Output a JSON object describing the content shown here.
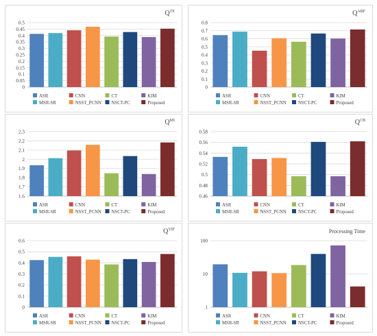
{
  "chart_data": [
    {
      "type": "bar",
      "title": "Q",
      "title_sup": "TE",
      "categories": [
        "ASR",
        "MSR-SR",
        "CNN",
        "NSST_PCNN",
        "CT",
        "NSCT-PC",
        "KIM",
        "Proposed"
      ],
      "series": [
        {
          "values": [
            0.413,
            0.419,
            0.441,
            0.468,
            0.392,
            0.427,
            0.388,
            0.453
          ]
        }
      ],
      "ylim": [
        0,
        0.5
      ],
      "yticks": [
        "0",
        "0.05",
        "0.1",
        "0.15",
        "0.2",
        "0.25",
        "0.3",
        "0.35",
        "0.4",
        "0.45",
        "0.5"
      ],
      "scale": "linear",
      "grid": true,
      "legend_position": "bottom"
    },
    {
      "type": "bar",
      "title": "Q",
      "title_sup": "ABF",
      "categories": [
        "ASR",
        "MSR-SR",
        "CNN",
        "NSST_PCNN",
        "CT",
        "NSCT-PC",
        "KIM",
        "Proposed"
      ],
      "series": [
        {
          "values": [
            0.645,
            0.688,
            0.452,
            0.607,
            0.563,
            0.665,
            0.603,
            0.715
          ]
        }
      ],
      "ylim": [
        0,
        0.8
      ],
      "yticks": [
        "0",
        "0.1",
        "0.2",
        "0.3",
        "0.4",
        "0.5",
        "0.6",
        "0.7",
        "0.8"
      ],
      "scale": "linear",
      "grid": true,
      "legend_position": "bottom"
    },
    {
      "type": "bar",
      "title": "Q",
      "title_sup": "MI",
      "categories": [
        "ASR",
        "MSR-SR",
        "CNN",
        "NSST_PCNN",
        "CT",
        "NSCT-PC",
        "KIM",
        "Proposed"
      ],
      "series": [
        {
          "values": [
            1.935,
            2.012,
            2.096,
            2.157,
            1.848,
            2.035,
            1.84,
            2.183
          ]
        }
      ],
      "ylim": [
        1.6,
        2.3
      ],
      "yticks": [
        "1.6",
        "1.7",
        "1.8",
        "1.9",
        "2",
        "2.1",
        "2.2",
        "2.3"
      ],
      "scale": "linear",
      "grid": true,
      "legend_position": "bottom"
    },
    {
      "type": "bar",
      "title": "Q",
      "title_sup": "CB",
      "categories": [
        "ASR",
        "MSR-SR",
        "CNN",
        "NSST_PCNN",
        "CT",
        "NSCT-PC",
        "KIM",
        "Proposed"
      ],
      "series": [
        {
          "values": [
            0.533,
            0.552,
            0.529,
            0.531,
            0.497,
            0.561,
            0.497,
            0.562
          ]
        }
      ],
      "ylim": [
        0.46,
        0.58
      ],
      "yticks": [
        "0.46",
        "0.48",
        "0.5",
        "0.52",
        "0.54",
        "0.56",
        "0.58"
      ],
      "scale": "linear",
      "grid": true,
      "legend_position": "bottom"
    },
    {
      "type": "bar",
      "title": "Q",
      "title_sup": "VIF",
      "categories": [
        "ASR",
        "MSR-SR",
        "CNN",
        "NSST_PCNN",
        "CT",
        "NSCT-PC",
        "KIM",
        "Proposed"
      ],
      "series": [
        {
          "values": [
            0.425,
            0.454,
            0.459,
            0.429,
            0.386,
            0.434,
            0.408,
            0.48
          ]
        }
      ],
      "ylim": [
        0,
        0.6
      ],
      "yticks": [
        "0",
        "0.1",
        "0.2",
        "0.3",
        "0.4",
        "0.5",
        "0.6"
      ],
      "scale": "linear",
      "grid": true,
      "legend_position": "bottom"
    },
    {
      "type": "bar",
      "title": "Processing Time",
      "title_sup": "",
      "categories": [
        "ASR",
        "MSR-SR",
        "CNN",
        "NSST_PCNN",
        "CT",
        "NSCT-PC",
        "KIM",
        "Proposed"
      ],
      "series": [
        {
          "values": [
            19.5,
            10.8,
            12.0,
            10.6,
            18.5,
            40.0,
            72.0,
            4.2
          ]
        }
      ],
      "ylim": [
        1,
        100
      ],
      "yticks": [
        "1",
        "10",
        "100"
      ],
      "scale": "log",
      "grid": true,
      "legend_position": "bottom"
    }
  ],
  "colors": {
    "ASR": "#4f81bd",
    "MSR-SR": "#4bacc6",
    "CNN": "#c0504d",
    "NSST_PCNN": "#f79646",
    "CT": "#9bbb59",
    "NSCT-PC": "#1f497d",
    "KIM": "#8064a2",
    "Proposed": "#7b2c2c"
  },
  "legend_order": [
    "ASR",
    "CNN",
    "CT",
    "KIM",
    "MSR-SR",
    "NSST_PCNN",
    "NSCT-PC",
    "Proposed"
  ]
}
